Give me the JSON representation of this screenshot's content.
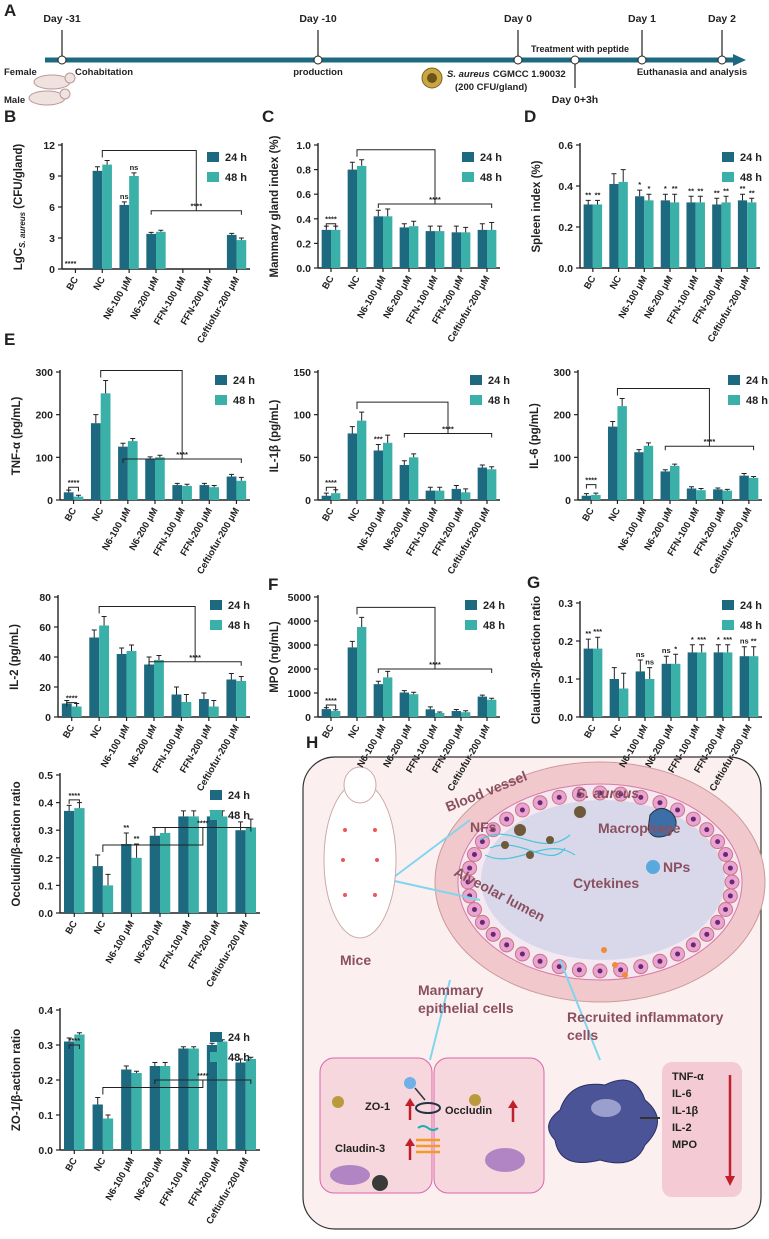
{
  "timeline": {
    "panel": "A",
    "days": [
      "Day -31",
      "Day -10",
      "Day 0",
      "Day 1",
      "Day 2"
    ],
    "sub_day": "Day 0+3h",
    "female": "Female",
    "cohabitation": "Cohabitation",
    "male": "Male",
    "production": "production",
    "strain": [
      "S. aureus",
      "CGMCC 1.90032"
    ],
    "dose": "(200 CFU/gland)",
    "treatment": "Treatment with peptide",
    "end": "Euthanasia and analysis"
  },
  "chart_data": [
    {
      "type": "bar",
      "panel": "B",
      "ylabel": [
        "LgC",
        "S. aureus",
        "(CFU/gland)"
      ],
      "categories": [
        "BC",
        "NC",
        "N6-100 μM",
        "N6-200 μM",
        "FFN-100 μM",
        "FFN-200 μM",
        "Ceftiofur-200 μM"
      ],
      "series": [
        {
          "name": "24 h",
          "color": "#1d6a80",
          "values": [
            0,
            9.5,
            6.2,
            3.4,
            0,
            0,
            3.3
          ],
          "errors": [
            0,
            0.4,
            0.3,
            0.15,
            0,
            0,
            0.15
          ],
          "significance": [
            "****",
            null,
            "ns",
            null,
            null,
            null,
            null
          ]
        },
        {
          "name": "48 h",
          "color": "#3bb0a8",
          "values": [
            0,
            10.1,
            9.0,
            3.6,
            0,
            0,
            2.8
          ],
          "errors": [
            0,
            0.4,
            0.3,
            0.15,
            0,
            0,
            0.2
          ],
          "significance": [
            null,
            null,
            "ns",
            null,
            null,
            null,
            null
          ]
        }
      ],
      "ylim": [
        0,
        12
      ],
      "yticks": [
        0,
        3,
        6,
        9,
        12
      ],
      "brackets": [
        "****"
      ]
    },
    {
      "type": "bar",
      "panel": "C",
      "ylabel": "Mammary gland index (%)",
      "categories": [
        "BC",
        "NC",
        "N6-100 μM",
        "N6-200 μM",
        "FFN-100 μM",
        "FFN-200 μM",
        "Ceftiofur-200 μM"
      ],
      "series": [
        {
          "name": "24 h",
          "color": "#1d6a80",
          "values": [
            0.31,
            0.8,
            0.42,
            0.33,
            0.3,
            0.29,
            0.31
          ],
          "errors": [
            0.03,
            0.06,
            0.05,
            0.03,
            0.04,
            0.05,
            0.05
          ],
          "significance": [
            null,
            null,
            null,
            null,
            null,
            null,
            null
          ]
        },
        {
          "name": "48 h",
          "color": "#3bb0a8",
          "values": [
            0.31,
            0.83,
            0.42,
            0.34,
            0.3,
            0.29,
            0.31
          ],
          "errors": [
            0.03,
            0.05,
            0.06,
            0.04,
            0.04,
            0.04,
            0.06
          ],
          "significance": [
            null,
            null,
            null,
            null,
            null,
            null,
            null
          ]
        }
      ],
      "ylim": [
        0,
        1.0
      ],
      "yticks": [
        {
          "value": 0,
          "label": "0.0"
        },
        0.2,
        0.4,
        0.6,
        0.8,
        {
          "value": 1.0,
          "label": "1.0"
        }
      ],
      "brackets": [
        "****",
        "****"
      ]
    },
    {
      "type": "bar",
      "panel": "D",
      "ylabel": "Spleen index (%)",
      "categories": [
        "BC",
        "NC",
        "N6-100 μM",
        "N6-200 μM",
        "FFN-100 μM",
        "FFN-200 μM",
        "Ceftiofur-200 μM"
      ],
      "series": [
        {
          "name": "24 h",
          "color": "#1d6a80",
          "values": [
            0.31,
            0.41,
            0.35,
            0.33,
            0.32,
            0.31,
            0.33
          ],
          "errors": [
            0.02,
            0.05,
            0.03,
            0.03,
            0.03,
            0.03,
            0.03
          ],
          "significance": [
            "**",
            null,
            "*",
            "*",
            "**",
            "**",
            "**"
          ]
        },
        {
          "name": "48 h",
          "color": "#3bb0a8",
          "values": [
            0.31,
            0.42,
            0.33,
            0.32,
            0.32,
            0.32,
            0.32
          ],
          "errors": [
            0.02,
            0.06,
            0.03,
            0.04,
            0.03,
            0.03,
            0.02
          ],
          "significance": [
            "**",
            null,
            "*",
            "**",
            "**",
            "**",
            "**"
          ]
        }
      ],
      "ylim": [
        0,
        0.6
      ],
      "yticks": [
        {
          "value": 0,
          "label": "0.0"
        },
        0.2,
        0.4,
        0.6
      ]
    },
    {
      "type": "bar",
      "panel": "E",
      "ylabel": "TNF-α (pg/mL)",
      "categories": [
        "BC",
        "NC",
        "N6-100 μM",
        "N6-200 μM",
        "FFN-100 μM",
        "FFN-200 μM",
        "Ceftiofur-200 μM"
      ],
      "series": [
        {
          "name": "24 h",
          "color": "#1d6a80",
          "values": [
            18,
            180,
            125,
            97,
            35,
            35,
            55
          ],
          "errors": [
            5,
            20,
            8,
            4,
            4,
            4,
            5
          ],
          "significance": [
            null,
            null,
            null,
            null,
            null,
            null,
            null
          ]
        },
        {
          "name": "48 h",
          "color": "#3bb0a8",
          "values": [
            8,
            250,
            138,
            100,
            33,
            30,
            45
          ],
          "errors": [
            3,
            30,
            6,
            5,
            4,
            4,
            8
          ],
          "significance": [
            null,
            null,
            null,
            null,
            null,
            null,
            null
          ]
        }
      ],
      "ylim": [
        0,
        300
      ],
      "yticks": [
        0,
        100,
        200,
        300
      ],
      "brackets": [
        "****",
        "****"
      ]
    },
    {
      "type": "bar",
      "ylabel": "IL-1β (pg/mL)",
      "categories": [
        "BC",
        "NC",
        "N6-100 μM",
        "N6-200 μM",
        "FFN-100 μM",
        "FFN-200 μM",
        "Ceftiofur-200 μM"
      ],
      "series": [
        {
          "name": "24 h",
          "color": "#1d6a80",
          "values": [
            5,
            78,
            58,
            41,
            11,
            13,
            38
          ],
          "errors": [
            3,
            8,
            7,
            5,
            4,
            4,
            3
          ],
          "significance": [
            null,
            null,
            "***",
            null,
            null,
            null,
            null
          ]
        },
        {
          "name": "48 h",
          "color": "#3bb0a8",
          "values": [
            8,
            93,
            67,
            50,
            11,
            9,
            36
          ],
          "errors": [
            4,
            10,
            9,
            4,
            4,
            4,
            3
          ],
          "significance": [
            null,
            null,
            null,
            null,
            null,
            null,
            null
          ]
        }
      ],
      "ylim": [
        0,
        150
      ],
      "yticks": [
        0,
        50,
        100,
        150
      ],
      "brackets": [
        "****",
        "****"
      ]
    },
    {
      "type": "bar",
      "ylabel": "IL-6 (pg/mL)",
      "categories": [
        "BC",
        "NC",
        "N6-100 μM",
        "N6-200 μM",
        "FFN-100 μM",
        "FFN-200 μM",
        "Ceftiofur-200 μM"
      ],
      "series": [
        {
          "name": "24 h",
          "color": "#1d6a80",
          "values": [
            10,
            172,
            112,
            67,
            27,
            25,
            57
          ],
          "errors": [
            5,
            12,
            6,
            4,
            4,
            3,
            5
          ],
          "significance": [
            null,
            null,
            null,
            null,
            null,
            null,
            null
          ]
        },
        {
          "name": "48 h",
          "color": "#3bb0a8",
          "values": [
            12,
            220,
            127,
            80,
            23,
            22,
            52
          ],
          "errors": [
            4,
            18,
            7,
            4,
            4,
            3,
            3
          ],
          "significance": [
            null,
            null,
            null,
            null,
            null,
            null,
            null
          ]
        }
      ],
      "ylim": [
        0,
        300
      ],
      "yticks": [
        0,
        100,
        200,
        300
      ],
      "brackets": [
        "****",
        "****"
      ]
    },
    {
      "type": "bar",
      "ylabel": "IL-2 (pg/mL)",
      "categories": [
        "BC",
        "NC",
        "N6-100 μM",
        "N6-200 μM",
        "FFN-100 μM",
        "FFN-200 μM",
        "Ceftiofur-200 μM"
      ],
      "series": [
        {
          "name": "24 h",
          "color": "#1d6a80",
          "values": [
            9,
            53,
            42,
            35,
            15,
            12,
            25
          ],
          "errors": [
            2,
            5,
            4,
            5,
            5,
            4,
            4
          ],
          "significance": [
            null,
            null,
            null,
            null,
            null,
            null,
            null
          ]
        },
        {
          "name": "48 h",
          "color": "#3bb0a8",
          "values": [
            7,
            61,
            44,
            38,
            10,
            7,
            24
          ],
          "errors": [
            2,
            6,
            4,
            3,
            5,
            4,
            3
          ],
          "significance": [
            null,
            null,
            null,
            null,
            null,
            null,
            null
          ]
        }
      ],
      "ylim": [
        0,
        80
      ],
      "yticks": [
        0,
        20,
        40,
        60,
        80
      ],
      "brackets": [
        "****",
        "****"
      ]
    },
    {
      "type": "bar",
      "panel": "F",
      "ylabel": "MPO (ng/mL)",
      "categories": [
        "BC",
        "NC",
        "N6-100 μM",
        "N6-200 μM",
        "FFN-100 μM",
        "FFN-200 μM",
        "Ceftiofur-200 μM"
      ],
      "series": [
        {
          "name": "24 h",
          "color": "#1d6a80",
          "values": [
            330,
            2900,
            1370,
            1020,
            320,
            250,
            850
          ],
          "errors": [
            60,
            250,
            120,
            80,
            100,
            60,
            60
          ],
          "significance": [
            null,
            null,
            null,
            null,
            null,
            null,
            null
          ]
        },
        {
          "name": "48 h",
          "color": "#3bb0a8",
          "values": [
            250,
            3750,
            1650,
            950,
            170,
            200,
            720
          ],
          "errors": [
            50,
            400,
            250,
            80,
            40,
            60,
            60
          ],
          "significance": [
            null,
            null,
            null,
            null,
            null,
            null,
            null
          ]
        }
      ],
      "ylim": [
        0,
        5000
      ],
      "yticks": [
        0,
        1000,
        2000,
        3000,
        4000,
        5000
      ],
      "brackets": [
        "****",
        "****"
      ]
    },
    {
      "type": "bar",
      "panel": "G",
      "ylabel": "Claudin-3/β-action ratio",
      "categories": [
        "BC",
        "NC",
        "N6-100 μM",
        "N6-200 μM",
        "FFN-100 μM",
        "FFN-200 μM",
        "Ceftiofur-200 μM"
      ],
      "series": [
        {
          "name": "24 h",
          "color": "#1d6a80",
          "values": [
            0.18,
            0.1,
            0.12,
            0.14,
            0.17,
            0.17,
            0.16
          ],
          "errors": [
            0.025,
            0.03,
            0.03,
            0.02,
            0.02,
            0.02,
            0.025
          ],
          "significance": [
            "**",
            null,
            "ns",
            "ns",
            "*",
            "*",
            "ns"
          ]
        },
        {
          "name": "48 h",
          "color": "#3bb0a8",
          "values": [
            0.18,
            0.075,
            0.1,
            0.14,
            0.17,
            0.17,
            0.16
          ],
          "errors": [
            0.03,
            0.04,
            0.03,
            0.025,
            0.02,
            0.02,
            0.025
          ],
          "significance": [
            "***",
            null,
            "ns",
            "*",
            "***",
            "***",
            "**"
          ]
        }
      ],
      "ylim": [
        0,
        0.3
      ],
      "yticks": [
        {
          "value": 0,
          "label": "0.0"
        },
        0.1,
        0.2,
        0.3
      ]
    },
    {
      "type": "bar",
      "ylabel": "Occludin/β-action ratio",
      "categories": [
        "BC",
        "NC",
        "N6-100 μM",
        "N6-200 μM",
        "FFN-100 μM",
        "FFN-200 μM",
        "Ceftiofur-200 μM"
      ],
      "series": [
        {
          "name": "24 h",
          "color": "#1d6a80",
          "values": [
            0.37,
            0.17,
            0.25,
            0.28,
            0.35,
            0.35,
            0.3
          ],
          "errors": [
            0.02,
            0.04,
            0.04,
            0.03,
            0.02,
            0.02,
            0.03
          ],
          "significance": [
            null,
            null,
            "**",
            null,
            null,
            null,
            null
          ]
        },
        {
          "name": "48 h",
          "color": "#3bb0a8",
          "values": [
            0.38,
            0.1,
            0.2,
            0.29,
            0.35,
            0.35,
            0.31
          ],
          "errors": [
            0.02,
            0.04,
            0.05,
            0.02,
            0.02,
            0.02,
            0.03
          ],
          "significance": [
            null,
            null,
            "**",
            null,
            null,
            null,
            null
          ]
        }
      ],
      "ylim": [
        0,
        0.5
      ],
      "yticks": [
        {
          "value": 0,
          "label": "0.0"
        },
        0.1,
        0.2,
        0.3,
        0.4,
        0.5
      ],
      "brackets": [
        "****",
        "****"
      ]
    },
    {
      "type": "bar",
      "ylabel": "ZO-1/β-action ratio",
      "categories": [
        "BC",
        "NC",
        "N6-100 μM",
        "N6-200 μM",
        "FFN-100 μM",
        "FFN-200 μM",
        "Ceftiofur-200 μM"
      ],
      "series": [
        {
          "name": "24 h",
          "color": "#1d6a80",
          "values": [
            0.31,
            0.13,
            0.23,
            0.24,
            0.29,
            0.3,
            0.25
          ],
          "errors": [
            0.01,
            0.02,
            0.01,
            0.01,
            0.005,
            0.005,
            0.01
          ],
          "significance": [
            null,
            null,
            null,
            null,
            null,
            null,
            null
          ]
        },
        {
          "name": "48 h",
          "color": "#3bb0a8",
          "values": [
            0.33,
            0.09,
            0.22,
            0.24,
            0.29,
            0.31,
            0.26
          ],
          "errors": [
            0.005,
            0.01,
            0.005,
            0.01,
            0.005,
            0.005,
            0.005
          ],
          "significance": [
            null,
            null,
            null,
            null,
            null,
            null,
            null
          ]
        }
      ],
      "ylim": [
        0,
        0.4
      ],
      "yticks": [
        {
          "value": 0,
          "label": "0.0"
        },
        0.1,
        0.2,
        0.3,
        0.4
      ],
      "brackets": [
        "****",
        "****"
      ]
    }
  ],
  "diagram": {
    "panel": "H",
    "blood_vessel": "Blood vessel",
    "bacteria": "S. aureus",
    "nfs": "NFs",
    "macrophage": "Macrophage",
    "lumen": "Alveolar lumen",
    "cytokines": "Cytekines",
    "nps": "NPs",
    "mice": "Mice",
    "epithelial": [
      "Mammary",
      "epithelial cells"
    ],
    "recruited": [
      "Recruited inflammatory",
      "cells"
    ],
    "zo1": "ZO-1",
    "occludin": "Occludin",
    "claudin": "Claudin-3",
    "markers": [
      "TNF-α",
      "IL-6",
      "IL-1β",
      "IL-2",
      "MPO"
    ]
  }
}
